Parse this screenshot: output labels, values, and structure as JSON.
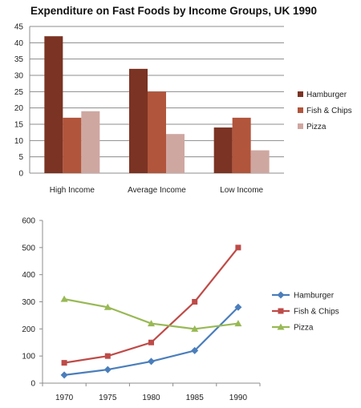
{
  "chart_data": [
    {
      "type": "bar",
      "title": "Expenditure on Fast Foods by Income Groups, UK 1990",
      "xlabel": "",
      "ylabel": "",
      "ylim": [
        0,
        45
      ],
      "yticks": [
        0,
        5,
        10,
        15,
        20,
        25,
        30,
        35,
        40,
        45
      ],
      "grid": true,
      "legend_position": "right",
      "categories": [
        "High Income",
        "Average Income",
        "Low Income"
      ],
      "series": [
        {
          "name": "Hamburger",
          "values": [
            42,
            32,
            14
          ],
          "color": "#7b3323"
        },
        {
          "name": "Fish & Chips",
          "values": [
            17,
            25,
            17
          ],
          "color": "#b1553c"
        },
        {
          "name": "Pizza",
          "values": [
            19,
            12,
            7
          ],
          "color": "#cfa7a1"
        }
      ]
    },
    {
      "type": "line",
      "title": "",
      "xlabel": "",
      "ylabel": "",
      "ylim": [
        0,
        600
      ],
      "yticks": [
        0,
        100,
        200,
        300,
        400,
        500,
        600
      ],
      "grid": false,
      "legend_position": "right",
      "x": [
        "1970",
        "1975",
        "1980",
        "1985",
        "1990"
      ],
      "series": [
        {
          "name": "Hamburger",
          "values": [
            30,
            50,
            80,
            120,
            280
          ],
          "color": "#4a7ebb",
          "marker": "diamond"
        },
        {
          "name": "Fish & Chips",
          "values": [
            75,
            100,
            150,
            300,
            500
          ],
          "color": "#be4b48",
          "marker": "square"
        },
        {
          "name": "Pizza",
          "values": [
            310,
            280,
            220,
            200,
            220
          ],
          "color": "#98b954",
          "marker": "triangle"
        }
      ]
    }
  ]
}
